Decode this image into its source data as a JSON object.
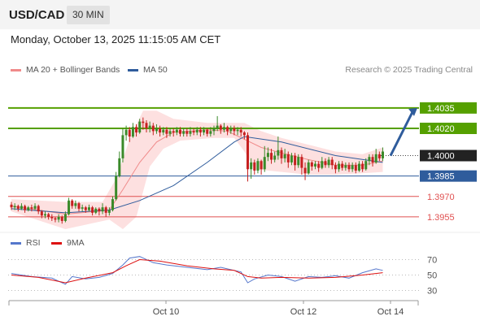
{
  "header": {
    "symbol": "USD/CAD",
    "interval": "30 MIN"
  },
  "datetime": "Monday, October 13, 2025 11:15:05 AM CET",
  "legend": {
    "ma_bollinger": {
      "label": "MA 20 + Bollinger Bands",
      "color": "#f08a8a"
    },
    "ma50": {
      "label": "MA 50",
      "color": "#2f5c9c"
    },
    "rsi": {
      "label": "RSI",
      "color": "#5577cc"
    },
    "rsi_ma": {
      "label": "9MA",
      "color": "#dd1111"
    }
  },
  "research": "Research © 2025 Trading Central",
  "chart_data": [
    {
      "type": "candlestick",
      "ylim": [
        1.3946,
        1.4057
      ],
      "x_ticks": [
        "Oct 10",
        "Oct 12",
        "Oct 14"
      ],
      "levels": [
        {
          "value": 1.4035,
          "label": "1.4035",
          "kind": "resistance"
        },
        {
          "value": 1.402,
          "label": "1.4020",
          "kind": "resistance"
        },
        {
          "value": 1.4,
          "label": "1.4000",
          "kind": "current"
        },
        {
          "value": 1.3985,
          "label": "1.3985",
          "kind": "pivot"
        },
        {
          "value": 1.397,
          "label": "1.3970",
          "kind": "support"
        },
        {
          "value": 1.3955,
          "label": "1.3955",
          "kind": "support"
        }
      ],
      "candles": [
        [
          1.3964,
          1.3962,
          1.3966,
          1.396
        ],
        [
          1.3962,
          1.3963,
          1.3965,
          1.396
        ],
        [
          1.3963,
          1.3961,
          1.3964,
          1.3959
        ],
        [
          1.3961,
          1.3963,
          1.3965,
          1.396
        ],
        [
          1.3963,
          1.396,
          1.3964,
          1.3958
        ],
        [
          1.396,
          1.3962,
          1.3963,
          1.3959
        ],
        [
          1.3962,
          1.3961,
          1.3964,
          1.3959
        ],
        [
          1.3961,
          1.3963,
          1.3965,
          1.396
        ],
        [
          1.3963,
          1.3959,
          1.3964,
          1.3957
        ],
        [
          1.3959,
          1.3956,
          1.396,
          1.3954
        ],
        [
          1.3956,
          1.3957,
          1.3959,
          1.3954
        ],
        [
          1.3957,
          1.3955,
          1.3958,
          1.3953
        ],
        [
          1.3955,
          1.3954,
          1.3957,
          1.3952
        ],
        [
          1.3954,
          1.3953,
          1.3955,
          1.3951
        ],
        [
          1.3953,
          1.3955,
          1.3957,
          1.3951
        ],
        [
          1.3955,
          1.3952,
          1.3956,
          1.395
        ],
        [
          1.3952,
          1.3957,
          1.3959,
          1.3951
        ],
        [
          1.3957,
          1.3967,
          1.3969,
          1.3956
        ],
        [
          1.3967,
          1.3963,
          1.3968,
          1.3961
        ],
        [
          1.3963,
          1.3965,
          1.3967,
          1.3961
        ],
        [
          1.3965,
          1.3961,
          1.3966,
          1.3959
        ],
        [
          1.3961,
          1.3962,
          1.3964,
          1.3959
        ],
        [
          1.3962,
          1.396,
          1.3963,
          1.3958
        ],
        [
          1.396,
          1.3962,
          1.3964,
          1.3959
        ],
        [
          1.3962,
          1.3958,
          1.3963,
          1.3956
        ],
        [
          1.3958,
          1.3961,
          1.3962,
          1.3957
        ],
        [
          1.3961,
          1.3959,
          1.3962,
          1.3956
        ],
        [
          1.3959,
          1.3962,
          1.3965,
          1.3957
        ],
        [
          1.3962,
          1.3958,
          1.3963,
          1.3955
        ],
        [
          1.3958,
          1.396,
          1.3962,
          1.3956
        ],
        [
          1.396,
          1.3968,
          1.397,
          1.3959
        ],
        [
          1.3968,
          1.3985,
          1.3988,
          1.3967
        ],
        [
          1.3985,
          1.3998,
          1.4003,
          1.3984
        ],
        [
          1.3998,
          1.4015,
          1.402,
          1.3995
        ],
        [
          1.4015,
          1.4019,
          1.4022,
          1.4011
        ],
        [
          1.4019,
          1.4014,
          1.4021,
          1.401
        ],
        [
          1.4014,
          1.4021,
          1.4024,
          1.4013
        ],
        [
          1.4021,
          1.4017,
          1.4023,
          1.4014
        ],
        [
          1.4017,
          1.4025,
          1.4027,
          1.4016
        ],
        [
          1.4025,
          1.4024,
          1.4028,
          1.4019
        ],
        [
          1.4024,
          1.402,
          1.4026,
          1.4017
        ],
        [
          1.402,
          1.4022,
          1.4025,
          1.4017
        ],
        [
          1.4022,
          1.4018,
          1.4024,
          1.4015
        ],
        [
          1.4018,
          1.402,
          1.4023,
          1.4016
        ],
        [
          1.402,
          1.4017,
          1.4022,
          1.4014
        ],
        [
          1.4017,
          1.4019,
          1.4021,
          1.4015
        ],
        [
          1.4019,
          1.4016,
          1.4021,
          1.4013
        ],
        [
          1.4016,
          1.4018,
          1.402,
          1.4014
        ],
        [
          1.4018,
          1.4017,
          1.402,
          1.4014
        ],
        [
          1.4017,
          1.4019,
          1.4021,
          1.4015
        ],
        [
          1.4019,
          1.4016,
          1.4021,
          1.4014
        ],
        [
          1.4016,
          1.4018,
          1.402,
          1.4014
        ],
        [
          1.4018,
          1.4016,
          1.402,
          1.4014
        ],
        [
          1.4016,
          1.4018,
          1.4021,
          1.4014
        ],
        [
          1.4018,
          1.4017,
          1.402,
          1.4015
        ],
        [
          1.4017,
          1.4019,
          1.4021,
          1.4015
        ],
        [
          1.4019,
          1.4017,
          1.4021,
          1.4014
        ],
        [
          1.4017,
          1.4019,
          1.4021,
          1.4015
        ],
        [
          1.4019,
          1.4016,
          1.402,
          1.4014
        ],
        [
          1.4016,
          1.4018,
          1.4021,
          1.4014
        ],
        [
          1.4018,
          1.402,
          1.4022,
          1.4015
        ],
        [
          1.402,
          1.4022,
          1.4029,
          1.4018
        ],
        [
          1.4022,
          1.4019,
          1.4023,
          1.4016
        ],
        [
          1.4019,
          1.4021,
          1.4024,
          1.4017
        ],
        [
          1.4021,
          1.4018,
          1.4022,
          1.4015
        ],
        [
          1.4018,
          1.402,
          1.4022,
          1.4016
        ],
        [
          1.402,
          1.4018,
          1.4022,
          1.4015
        ],
        [
          1.4018,
          1.4019,
          1.4021,
          1.4015
        ],
        [
          1.4019,
          1.4017,
          1.4021,
          1.4014
        ],
        [
          1.4017,
          1.4015,
          1.4018,
          1.4012
        ],
        [
          1.4015,
          1.399,
          1.4017,
          1.3981
        ],
        [
          1.399,
          1.3995,
          1.3998,
          1.3983
        ],
        [
          1.3995,
          1.3989,
          1.3997,
          1.3986
        ],
        [
          1.3989,
          1.3996,
          1.3998,
          1.3987
        ],
        [
          1.3996,
          1.399,
          1.3997,
          1.3986
        ],
        [
          1.399,
          1.3999,
          1.4007,
          1.3988
        ],
        [
          1.3999,
          1.4002,
          1.4006,
          1.3996
        ],
        [
          1.4002,
          1.3997,
          1.4005,
          1.3994
        ],
        [
          1.3997,
          1.4,
          1.4003,
          1.3995
        ],
        [
          1.4,
          1.4004,
          1.4014,
          1.3997
        ],
        [
          1.4004,
          1.3998,
          1.4006,
          1.3994
        ],
        [
          1.3998,
          1.4001,
          1.4005,
          1.3995
        ],
        [
          1.4001,
          1.3995,
          1.4003,
          1.3991
        ],
        [
          1.3995,
          1.4,
          1.4002,
          1.3993
        ],
        [
          1.4,
          1.3993,
          1.4002,
          1.3989
        ],
        [
          1.3993,
          1.3999,
          1.4001,
          1.3991
        ],
        [
          1.3999,
          1.3991,
          1.4001,
          1.3986
        ],
        [
          1.3991,
          1.3987,
          1.3995,
          1.3982
        ],
        [
          1.3987,
          1.3995,
          1.3997,
          1.3986
        ],
        [
          1.3995,
          1.3992,
          1.3996,
          1.3989
        ],
        [
          1.3992,
          1.3994,
          1.3996,
          1.399
        ],
        [
          1.3994,
          1.3991,
          1.3996,
          1.3988
        ],
        [
          1.3991,
          1.3996,
          1.3999,
          1.399
        ],
        [
          1.3996,
          1.3993,
          1.3998,
          1.3991
        ],
        [
          1.3993,
          1.3997,
          1.3999,
          1.3991
        ],
        [
          1.3997,
          1.3993,
          1.3999,
          1.399
        ],
        [
          1.3993,
          1.399,
          1.3995,
          1.3987
        ],
        [
          1.399,
          1.3994,
          1.3996,
          1.3988
        ],
        [
          1.3994,
          1.3991,
          1.3996,
          1.3989
        ],
        [
          1.3991,
          1.3993,
          1.3995,
          1.3989
        ],
        [
          1.3993,
          1.399,
          1.3995,
          1.3988
        ],
        [
          1.399,
          1.3993,
          1.3995,
          1.3988
        ],
        [
          1.3993,
          1.3989,
          1.3995,
          1.3987
        ],
        [
          1.3989,
          1.3994,
          1.3996,
          1.3988
        ],
        [
          1.3994,
          1.399,
          1.3996,
          1.3988
        ],
        [
          1.399,
          1.3996,
          1.3998,
          1.3989
        ],
        [
          1.3996,
          1.3999,
          1.4001,
          1.3993
        ],
        [
          1.3999,
          1.3995,
          1.4001,
          1.3992
        ],
        [
          1.3995,
          1.4001,
          1.4005,
          1.3994
        ],
        [
          1.4001,
          1.3998,
          1.4003,
          1.3996
        ],
        [
          1.3998,
          1.4003,
          1.4006,
          1.3996
        ]
      ],
      "ma20": [
        [
          0,
          1.3963
        ],
        [
          16,
          1.3957
        ],
        [
          29,
          1.396
        ],
        [
          33,
          1.3975
        ],
        [
          38,
          1.3995
        ],
        [
          43,
          1.401
        ],
        [
          48,
          1.4017
        ],
        [
          58,
          1.4019
        ],
        [
          64,
          1.4018
        ],
        [
          69,
          1.4012
        ],
        [
          74,
          1.4006
        ],
        [
          80,
          1.4002
        ],
        [
          88,
          1.3997
        ],
        [
          96,
          1.3993
        ],
        [
          104,
          1.3993
        ],
        [
          110,
          1.3996
        ]
      ],
      "bollinger_upper": [
        [
          0,
          1.3968
        ],
        [
          16,
          1.3966
        ],
        [
          27,
          1.3966
        ],
        [
          31,
          1.3983
        ],
        [
          35,
          1.4012
        ],
        [
          39,
          1.4033
        ],
        [
          43,
          1.4033
        ],
        [
          48,
          1.4027
        ],
        [
          58,
          1.4024
        ],
        [
          66,
          1.4024
        ],
        [
          69,
          1.4024
        ],
        [
          74,
          1.4018
        ],
        [
          80,
          1.4013
        ],
        [
          88,
          1.4008
        ],
        [
          96,
          1.4003
        ],
        [
          104,
          1.4001
        ],
        [
          110,
          1.4006
        ]
      ],
      "bollinger_lower": [
        [
          0,
          1.3959
        ],
        [
          16,
          1.3946
        ],
        [
          29,
          1.3953
        ],
        [
          33,
          1.3946
        ],
        [
          37,
          1.3955
        ],
        [
          41,
          1.3992
        ],
        [
          45,
          1.4005
        ],
        [
          50,
          1.4011
        ],
        [
          60,
          1.4013
        ],
        [
          66,
          1.4013
        ],
        [
          69,
          1.4003
        ],
        [
          72,
          1.399
        ],
        [
          80,
          1.3988
        ],
        [
          88,
          1.3986
        ],
        [
          96,
          1.3986
        ],
        [
          104,
          1.3987
        ],
        [
          110,
          1.3988
        ]
      ],
      "ma50": [
        [
          0,
          1.3961
        ],
        [
          16,
          1.3958
        ],
        [
          29,
          1.396
        ],
        [
          38,
          1.3967
        ],
        [
          48,
          1.3978
        ],
        [
          58,
          1.3995
        ],
        [
          66,
          1.401
        ],
        [
          69,
          1.4014
        ],
        [
          80,
          1.401
        ],
        [
          96,
          1.4
        ],
        [
          110,
          1.3995
        ]
      ]
    },
    {
      "type": "line",
      "ylim": [
        20,
        80
      ],
      "y_ticks": [
        "70",
        "50",
        "30"
      ],
      "series": [
        {
          "name": "RSI",
          "values": [
            [
              0,
              52
            ],
            [
              6,
              48
            ],
            [
              12,
              46
            ],
            [
              16,
              38
            ],
            [
              18,
              48
            ],
            [
              22,
              45
            ],
            [
              26,
              47
            ],
            [
              30,
              52
            ],
            [
              33,
              63
            ],
            [
              35,
              72
            ],
            [
              38,
              74
            ],
            [
              42,
              66
            ],
            [
              46,
              63
            ],
            [
              52,
              60
            ],
            [
              58,
              57
            ],
            [
              62,
              60
            ],
            [
              66,
              56
            ],
            [
              68,
              54
            ],
            [
              70,
              40
            ],
            [
              72,
              45
            ],
            [
              76,
              50
            ],
            [
              80,
              48
            ],
            [
              84,
              42
            ],
            [
              88,
              48
            ],
            [
              92,
              47
            ],
            [
              96,
              49
            ],
            [
              100,
              46
            ],
            [
              104,
              53
            ],
            [
              108,
              58
            ],
            [
              110,
              56
            ]
          ]
        },
        {
          "name": "9MA",
          "values": [
            [
              0,
              50
            ],
            [
              8,
              47
            ],
            [
              16,
              40
            ],
            [
              22,
              46
            ],
            [
              30,
              53
            ],
            [
              34,
              62
            ],
            [
              38,
              70
            ],
            [
              44,
              68
            ],
            [
              52,
              62
            ],
            [
              60,
              58
            ],
            [
              66,
              56
            ],
            [
              70,
              48
            ],
            [
              74,
              46
            ],
            [
              80,
              47
            ],
            [
              88,
              46
            ],
            [
              96,
              47
            ],
            [
              104,
              50
            ],
            [
              110,
              53
            ]
          ]
        }
      ]
    }
  ]
}
